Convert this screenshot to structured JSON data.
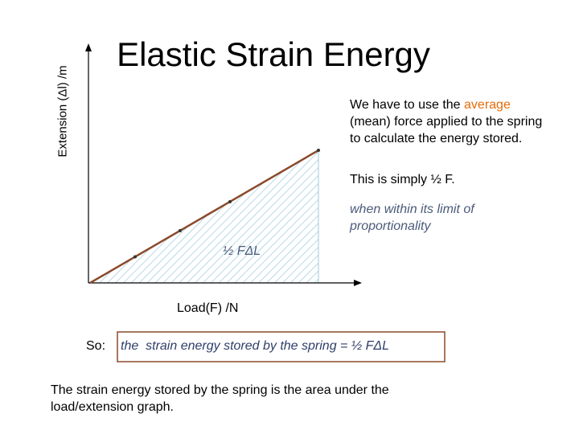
{
  "title": "Elastic Strain Energy",
  "graph": {
    "y_axis_label": "Extension (Δl) /m",
    "x_axis_label": "Load(F) /N",
    "area_label": "½ FΔL"
  },
  "explanation": {
    "before": "We have to use the",
    "highlight": "average",
    "after": "(mean) force applied to the spring to calculate the energy stored."
  },
  "note": "This is simply ½ F.",
  "condition": "when within its limit of proportionality",
  "conclusion": {
    "prefix": "So:",
    "text": "the  strain energy stored by the spring = ½ FΔL"
  },
  "summary": "The strain energy stored by the spring is the area under the load/extension graph."
}
